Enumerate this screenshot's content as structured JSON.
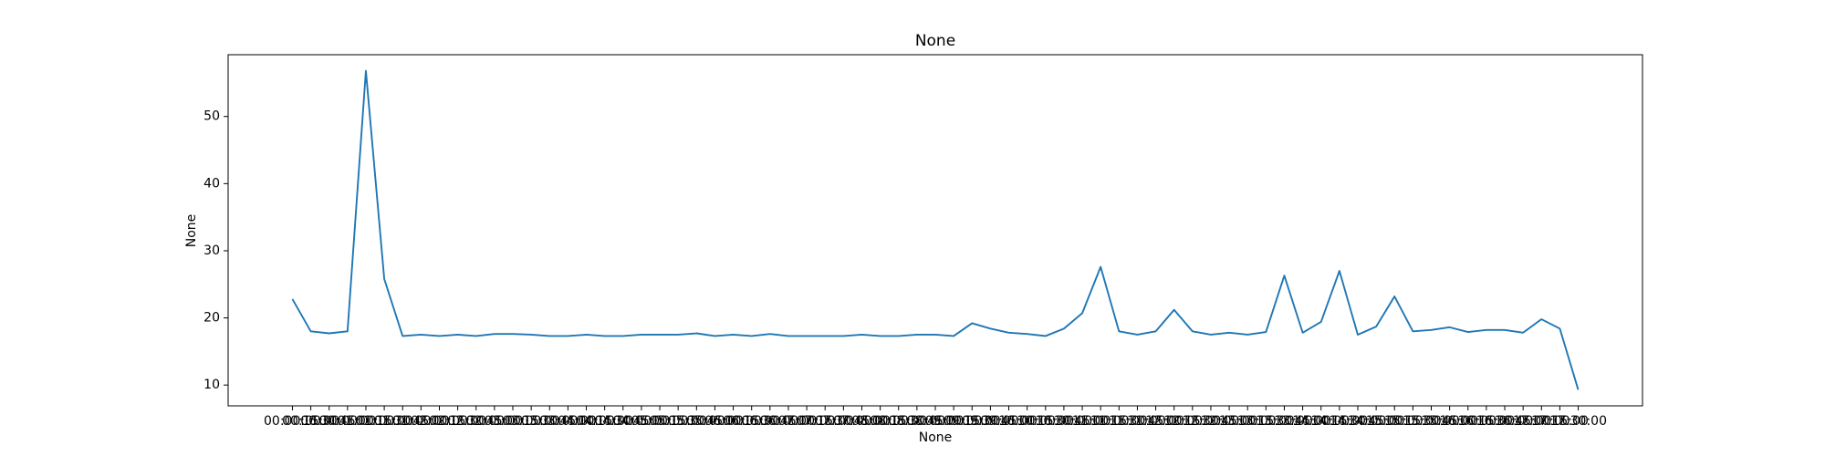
{
  "chart_data": {
    "type": "line",
    "title": "None",
    "x_label": "None",
    "y_label": "None",
    "categories": [
      "00:00:00",
      "00:15:00",
      "00:30:00",
      "00:45:00",
      "01:00:00",
      "01:15:00",
      "01:30:00",
      "01:45:00",
      "02:00:00",
      "02:15:00",
      "02:30:00",
      "02:45:00",
      "03:00:00",
      "03:15:00",
      "03:30:00",
      "03:45:00",
      "04:00:00",
      "04:15:00",
      "04:30:00",
      "04:45:00",
      "05:00:00",
      "05:15:00",
      "05:30:00",
      "05:45:00",
      "06:00:00",
      "06:15:00",
      "06:30:00",
      "06:45:00",
      "07:00:00",
      "07:15:00",
      "07:30:00",
      "07:45:00",
      "08:00:00",
      "08:15:00",
      "08:30:00",
      "08:45:00",
      "09:00:00",
      "09:15:00",
      "09:30:00",
      "09:45:00",
      "10:00:00",
      "10:15:00",
      "10:30:00",
      "10:45:00",
      "11:00:00",
      "11:15:00",
      "11:30:00",
      "11:45:00",
      "12:00:00",
      "12:15:00",
      "12:30:00",
      "12:45:00",
      "13:00:00",
      "13:15:00",
      "13:30:00",
      "13:45:00",
      "14:00:00",
      "14:15:00",
      "14:30:00",
      "14:45:00",
      "15:00:00",
      "15:15:00",
      "15:30:00",
      "15:45:00",
      "16:00:00",
      "16:15:00",
      "16:30:00",
      "16:45:00",
      "17:00:00",
      "17:15:00",
      "17:30:00"
    ],
    "series": [
      {
        "name": "None",
        "color": "#1f77b4",
        "values": [
          22.8,
          18.0,
          17.7,
          18.0,
          56.8,
          25.8,
          17.3,
          17.5,
          17.3,
          17.5,
          17.3,
          17.6,
          17.6,
          17.5,
          17.3,
          17.3,
          17.5,
          17.3,
          17.3,
          17.5,
          17.5,
          17.5,
          17.7,
          17.3,
          17.5,
          17.3,
          17.6,
          17.3,
          17.3,
          17.3,
          17.3,
          17.5,
          17.3,
          17.3,
          17.5,
          17.5,
          17.3,
          19.2,
          18.4,
          17.8,
          17.6,
          17.3,
          18.4,
          20.7,
          27.6,
          18.0,
          17.5,
          18.0,
          21.2,
          18.0,
          17.5,
          17.8,
          17.5,
          17.9,
          26.3,
          17.8,
          19.4,
          27.0,
          17.5,
          18.7,
          23.2,
          18.0,
          18.2,
          18.6,
          17.9,
          18.2,
          18.2,
          17.8,
          19.8,
          18.4,
          9.3
        ]
      }
    ],
    "ylim": [
      6.9,
      59.2
    ],
    "yticks": [
      10,
      20,
      30,
      40,
      50
    ],
    "grid": false
  }
}
